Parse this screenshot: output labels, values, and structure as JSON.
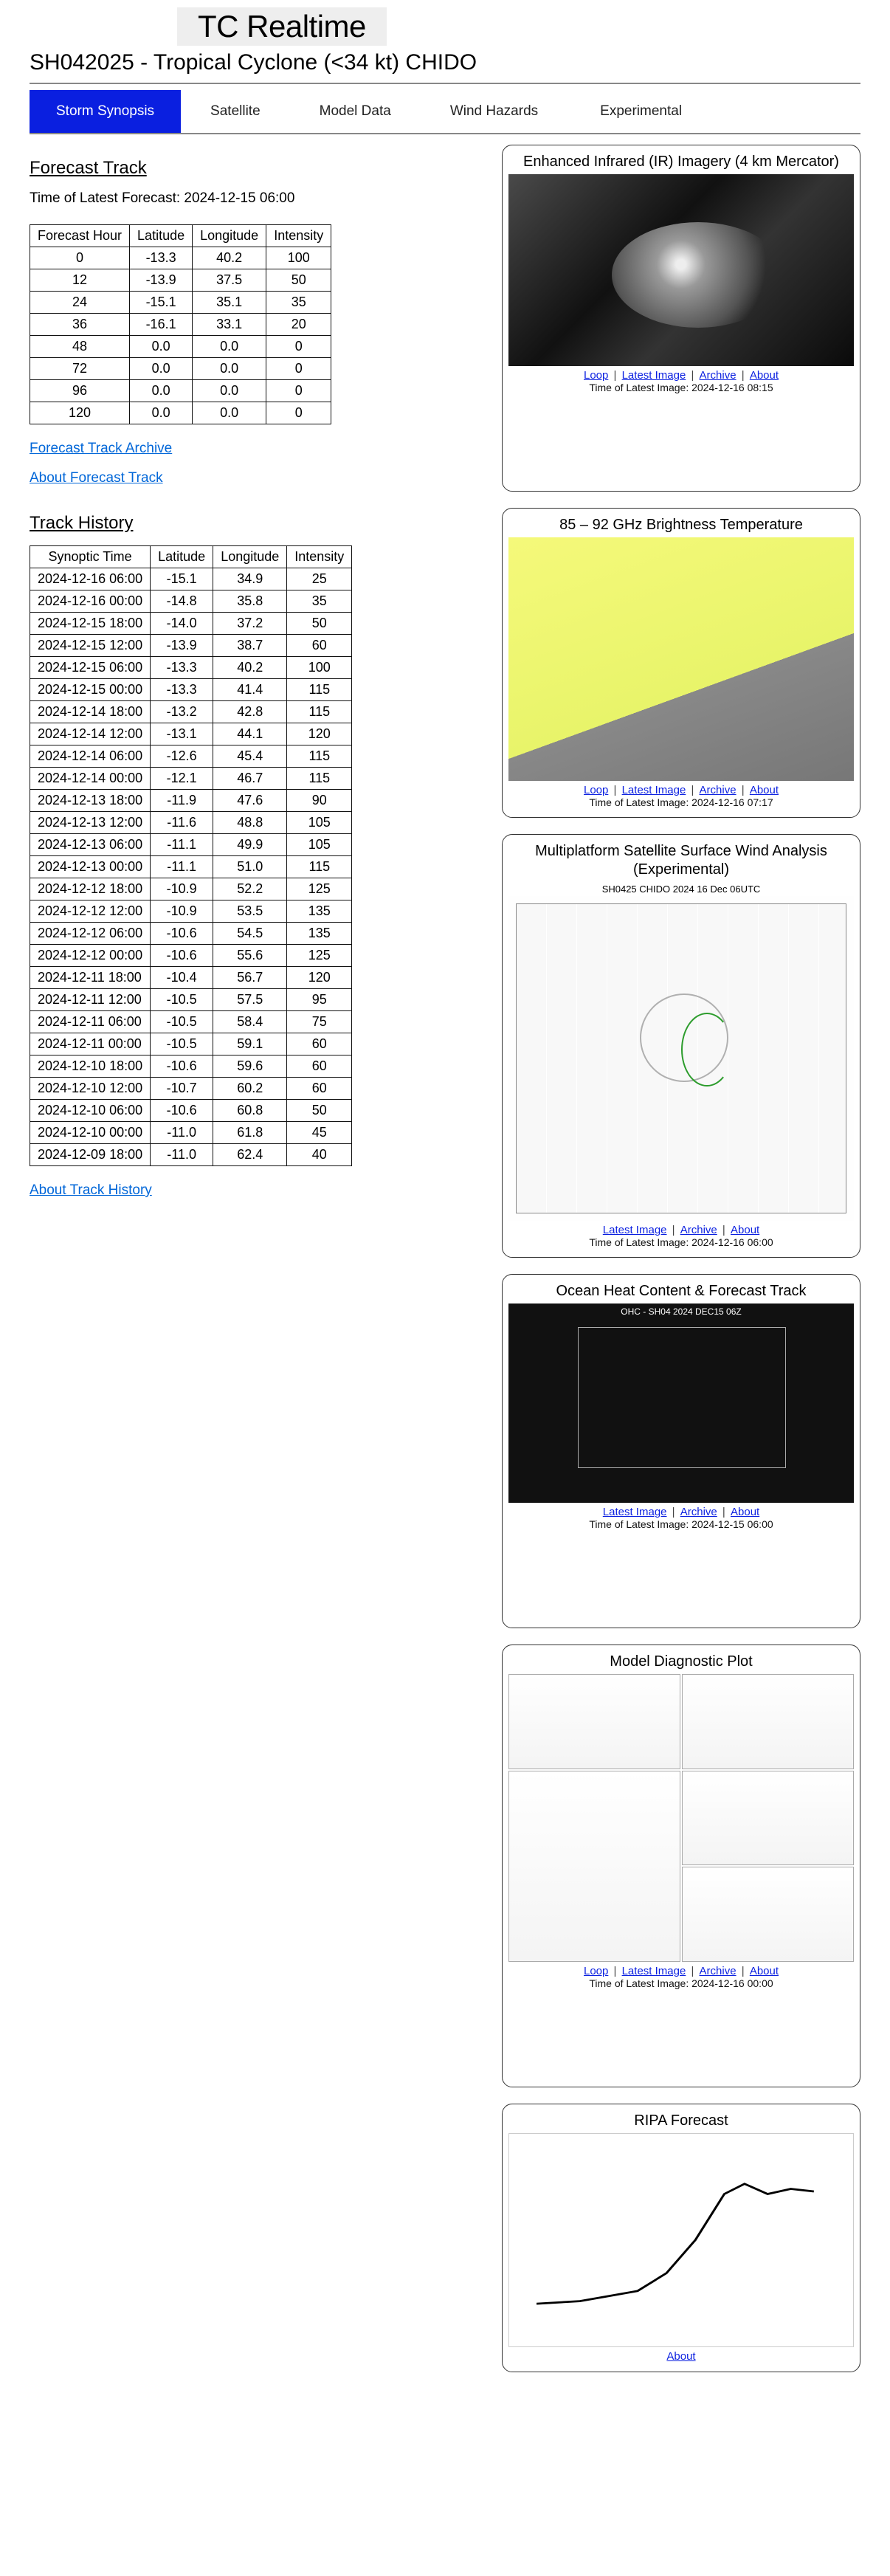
{
  "header": {
    "app_title": "TC Realtime",
    "subtitle": "SH042025 - Tropical Cyclone (<34 kt) CHIDO"
  },
  "tabs": [
    {
      "id": "storm",
      "label": "Storm Synopsis",
      "active": true
    },
    {
      "id": "satellite",
      "label": "Satellite",
      "active": false
    },
    {
      "id": "model",
      "label": "Model Data",
      "active": false
    },
    {
      "id": "wind",
      "label": "Wind Hazards",
      "active": false
    },
    {
      "id": "exp",
      "label": "Experimental",
      "active": false
    }
  ],
  "forecast_track": {
    "heading": "Forecast Track",
    "time_label": "Time of Latest Forecast: 2024-12-15 06:00",
    "columns": [
      "Forecast Hour",
      "Latitude",
      "Longitude",
      "Intensity"
    ],
    "rows": [
      [
        "0",
        "-13.3",
        "40.2",
        "100"
      ],
      [
        "12",
        "-13.9",
        "37.5",
        "50"
      ],
      [
        "24",
        "-15.1",
        "35.1",
        "35"
      ],
      [
        "36",
        "-16.1",
        "33.1",
        "20"
      ],
      [
        "48",
        "0.0",
        "0.0",
        "0"
      ],
      [
        "72",
        "0.0",
        "0.0",
        "0"
      ],
      [
        "96",
        "0.0",
        "0.0",
        "0"
      ],
      [
        "120",
        "0.0",
        "0.0",
        "0"
      ]
    ],
    "archive_link": "Forecast Track Archive",
    "about_link": "About Forecast Track"
  },
  "track_history": {
    "heading": "Track History",
    "columns": [
      "Synoptic Time",
      "Latitude",
      "Longitude",
      "Intensity"
    ],
    "rows": [
      [
        "2024-12-16 06:00",
        "-15.1",
        "34.9",
        "25"
      ],
      [
        "2024-12-16 00:00",
        "-14.8",
        "35.8",
        "35"
      ],
      [
        "2024-12-15 18:00",
        "-14.0",
        "37.2",
        "50"
      ],
      [
        "2024-12-15 12:00",
        "-13.9",
        "38.7",
        "60"
      ],
      [
        "2024-12-15 06:00",
        "-13.3",
        "40.2",
        "100"
      ],
      [
        "2024-12-15 00:00",
        "-13.3",
        "41.4",
        "115"
      ],
      [
        "2024-12-14 18:00",
        "-13.2",
        "42.8",
        "115"
      ],
      [
        "2024-12-14 12:00",
        "-13.1",
        "44.1",
        "120"
      ],
      [
        "2024-12-14 06:00",
        "-12.6",
        "45.4",
        "115"
      ],
      [
        "2024-12-14 00:00",
        "-12.1",
        "46.7",
        "115"
      ],
      [
        "2024-12-13 18:00",
        "-11.9",
        "47.6",
        "90"
      ],
      [
        "2024-12-13 12:00",
        "-11.6",
        "48.8",
        "105"
      ],
      [
        "2024-12-13 06:00",
        "-11.1",
        "49.9",
        "105"
      ],
      [
        "2024-12-13 00:00",
        "-11.1",
        "51.0",
        "115"
      ],
      [
        "2024-12-12 18:00",
        "-10.9",
        "52.2",
        "125"
      ],
      [
        "2024-12-12 12:00",
        "-10.9",
        "53.5",
        "135"
      ],
      [
        "2024-12-12 06:00",
        "-10.6",
        "54.5",
        "135"
      ],
      [
        "2024-12-12 00:00",
        "-10.6",
        "55.6",
        "125"
      ],
      [
        "2024-12-11 18:00",
        "-10.4",
        "56.7",
        "120"
      ],
      [
        "2024-12-11 12:00",
        "-10.5",
        "57.5",
        "95"
      ],
      [
        "2024-12-11 06:00",
        "-10.5",
        "58.4",
        "75"
      ],
      [
        "2024-12-11 00:00",
        "-10.5",
        "59.1",
        "60"
      ],
      [
        "2024-12-10 18:00",
        "-10.6",
        "59.6",
        "60"
      ],
      [
        "2024-12-10 12:00",
        "-10.7",
        "60.2",
        "60"
      ],
      [
        "2024-12-10 06:00",
        "-10.6",
        "60.8",
        "50"
      ],
      [
        "2024-12-10 00:00",
        "-11.0",
        "61.8",
        "45"
      ],
      [
        "2024-12-09 18:00",
        "-11.0",
        "62.4",
        "40"
      ]
    ],
    "about_link": "About Track History"
  },
  "cards": {
    "ir": {
      "title": "Enhanced Infrared (IR) Imagery (4 km Mercator)",
      "links": [
        "Loop",
        "Latest Image",
        "Archive",
        "About"
      ],
      "time": "Time of Latest Image: 2024-12-16 08:15"
    },
    "ghz": {
      "title": "85 – 92 GHz Brightness Temperature",
      "links": [
        "Loop",
        "Latest Image",
        "Archive",
        "About"
      ],
      "time": "Time of Latest Image: 2024-12-16 07:17"
    },
    "wind": {
      "title": "Multiplatform Satellite Surface Wind Analysis (Experimental)",
      "subtitle": "SH0425     CHIDO  2024  16  Dec  06UTC",
      "links": [
        "Latest Image",
        "Archive",
        "About"
      ],
      "time": "Time of Latest Image: 2024-12-16 06:00"
    },
    "ohc": {
      "title": "Ocean Heat Content & Forecast Track",
      "subtitle": "OHC  -  SH04  2024  DEC15  06Z",
      "links": [
        "Latest Image",
        "Archive",
        "About"
      ],
      "time": "Time of Latest Image: 2024-12-15 06:00"
    },
    "model": {
      "title": "Model Diagnostic Plot",
      "links": [
        "Loop",
        "Latest Image",
        "Archive",
        "About"
      ],
      "time": "Time of Latest Image: 2024-12-16 00:00"
    },
    "ripa": {
      "title": "RIPA Forecast",
      "links": [
        "About"
      ]
    }
  },
  "colors": {
    "tab_active_bg": "#0a1fe0",
    "tab_active_fg": "#ffffff",
    "link": "#0066d8",
    "border": "#111111",
    "hr": "#888888",
    "app_title_bg": "#eeeeee"
  }
}
